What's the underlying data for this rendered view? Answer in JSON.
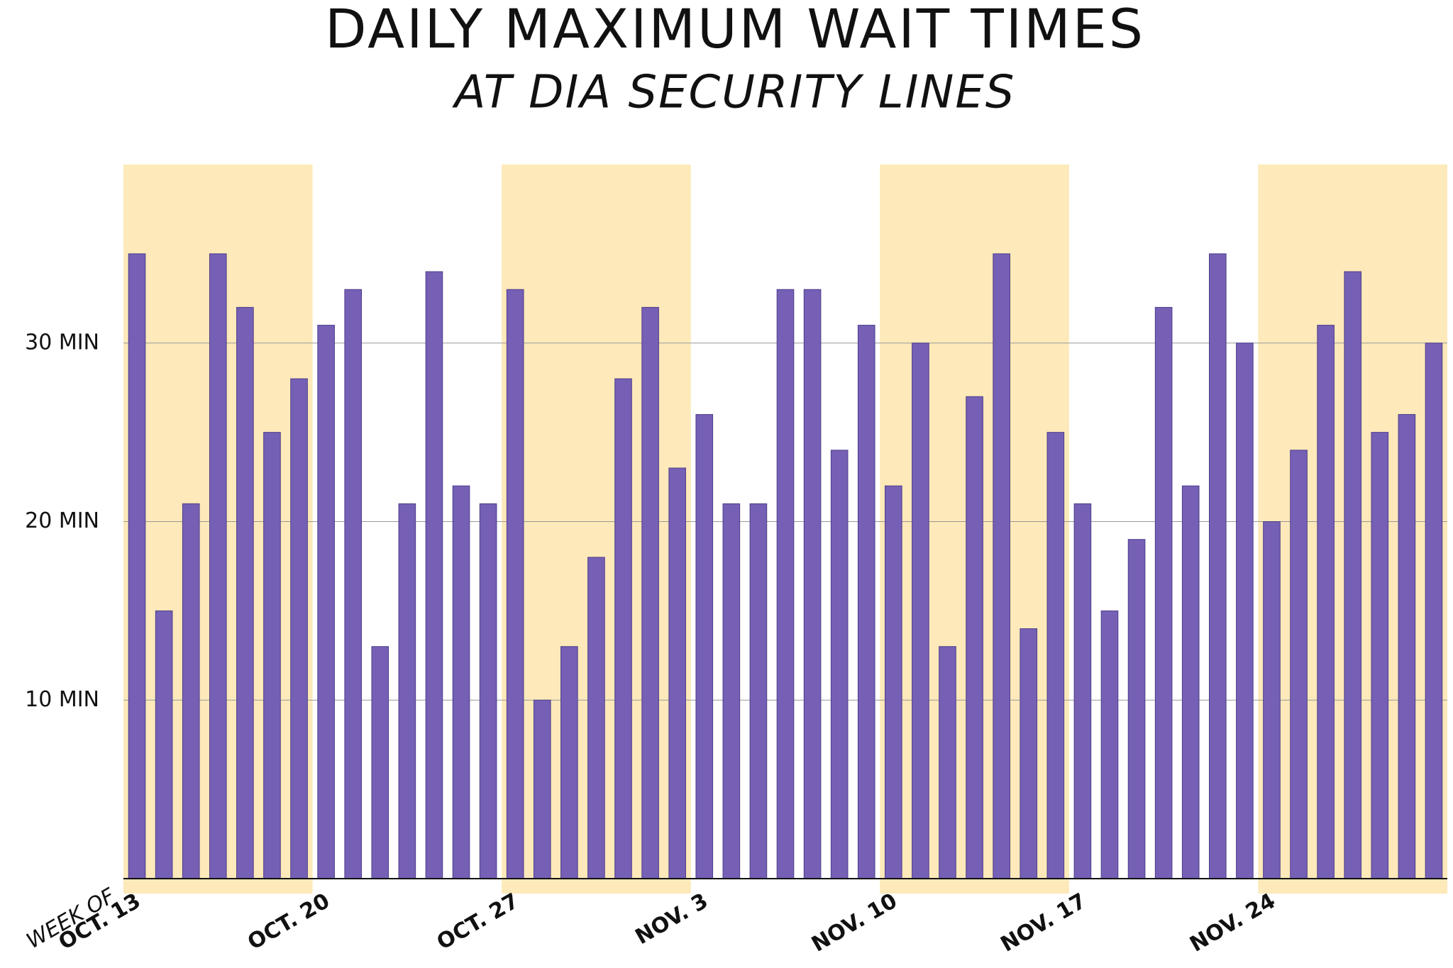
{
  "chart_data": {
    "type": "bar",
    "title": "DAILY MAXIMUM WAIT TIMES",
    "subtitle": "AT DIA SECURITY LINES",
    "x_annotation": "WEEK OF",
    "categories": [
      "OCT. 13",
      null,
      null,
      null,
      null,
      null,
      null,
      "OCT. 20",
      null,
      null,
      null,
      null,
      null,
      null,
      "OCT. 27",
      null,
      null,
      null,
      null,
      null,
      null,
      "NOV. 3",
      null,
      null,
      null,
      null,
      null,
      null,
      "NOV. 10",
      null,
      null,
      null,
      null,
      null,
      null,
      "NOV. 17",
      null,
      null,
      null,
      null,
      null,
      null,
      "NOV. 24",
      null,
      null,
      null,
      null,
      null,
      null
    ],
    "values": [
      35,
      15,
      21,
      35,
      32,
      25,
      28,
      31,
      33,
      13,
      21,
      34,
      22,
      21,
      33,
      10,
      13,
      18,
      28,
      32,
      23,
      26,
      21,
      21,
      33,
      33,
      24,
      31,
      22,
      30,
      13,
      27,
      35,
      14,
      25,
      21,
      15,
      19,
      32,
      22,
      35,
      30,
      20,
      24,
      31,
      34,
      25,
      26,
      30
    ],
    "color": "#7560b5",
    "band_color": "#fde9b9",
    "ylim": [
      0,
      40
    ],
    "yticks": [
      {
        "value": 10,
        "label": "10 MIN"
      },
      {
        "value": 20,
        "label": "20 MIN"
      },
      {
        "value": 30,
        "label": "30 MIN"
      }
    ],
    "grid": true
  }
}
